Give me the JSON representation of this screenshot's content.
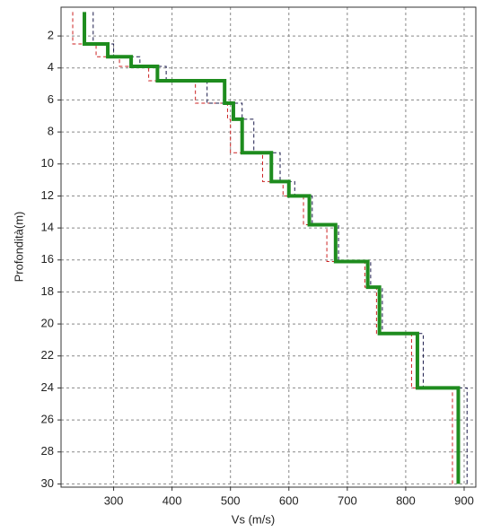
{
  "chart_data": {
    "type": "step-line",
    "xlabel": "Vs (m/s)",
    "ylabel": "Profondità(m)",
    "xlim": [
      210,
      920
    ],
    "xticks": [
      300,
      400,
      500,
      600,
      700,
      800,
      900
    ],
    "ylim": [
      0.2,
      30.2
    ],
    "yticks": [
      2,
      4,
      6,
      8,
      10,
      12,
      14,
      16,
      18,
      20,
      22,
      24,
      26,
      28,
      30
    ],
    "y_inverted": true,
    "grid": true,
    "series": [
      {
        "color": "#cc2222",
        "dash": true,
        "width": 1,
        "x": [
          230,
          230,
          270,
          270,
          310,
          310,
          360,
          360,
          440,
          440,
          495,
          495,
          500,
          500,
          555,
          555,
          590,
          590,
          625,
          625,
          665,
          665,
          730,
          730,
          750,
          750,
          810,
          810,
          880,
          880
        ],
        "y": [
          0.5,
          2.5,
          2.5,
          3.3,
          3.3,
          3.9,
          3.9,
          4.8,
          4.8,
          6.2,
          6.2,
          7.2,
          7.2,
          9.3,
          9.3,
          11.1,
          11.1,
          12.0,
          12.0,
          13.8,
          13.8,
          16.1,
          16.1,
          17.7,
          17.7,
          20.6,
          20.6,
          24.0,
          24.0,
          30.0
        ]
      },
      {
        "color": "#1a1a4a",
        "dash": true,
        "width": 1,
        "x": [
          265,
          265,
          300,
          300,
          345,
          345,
          390,
          390,
          460,
          460,
          520,
          520,
          540,
          540,
          585,
          585,
          610,
          610,
          640,
          640,
          685,
          685,
          740,
          740,
          760,
          760,
          830,
          830,
          905,
          905
        ],
        "y": [
          0.5,
          2.5,
          2.5,
          3.3,
          3.3,
          3.9,
          3.9,
          4.8,
          4.8,
          6.2,
          6.2,
          7.2,
          7.2,
          9.3,
          9.3,
          11.1,
          11.1,
          12.0,
          12.0,
          13.8,
          13.8,
          16.1,
          16.1,
          17.7,
          17.7,
          20.6,
          20.6,
          24.0,
          24.0,
          30.0
        ]
      },
      {
        "color": "#1e8c1e",
        "dash": false,
        "width": 4,
        "x": [
          250,
          250,
          290,
          290,
          330,
          330,
          375,
          375,
          490,
          490,
          505,
          505,
          520,
          520,
          570,
          570,
          600,
          600,
          635,
          635,
          680,
          680,
          735,
          735,
          755,
          755,
          820,
          820,
          890,
          890
        ],
        "y": [
          0.5,
          2.5,
          2.5,
          3.3,
          3.3,
          3.9,
          3.9,
          4.8,
          4.8,
          6.2,
          6.2,
          7.2,
          7.2,
          9.3,
          9.3,
          11.1,
          11.1,
          12.0,
          12.0,
          13.8,
          13.8,
          16.1,
          16.1,
          17.7,
          17.7,
          20.6,
          20.6,
          24.0,
          24.0,
          30.0
        ]
      }
    ]
  }
}
